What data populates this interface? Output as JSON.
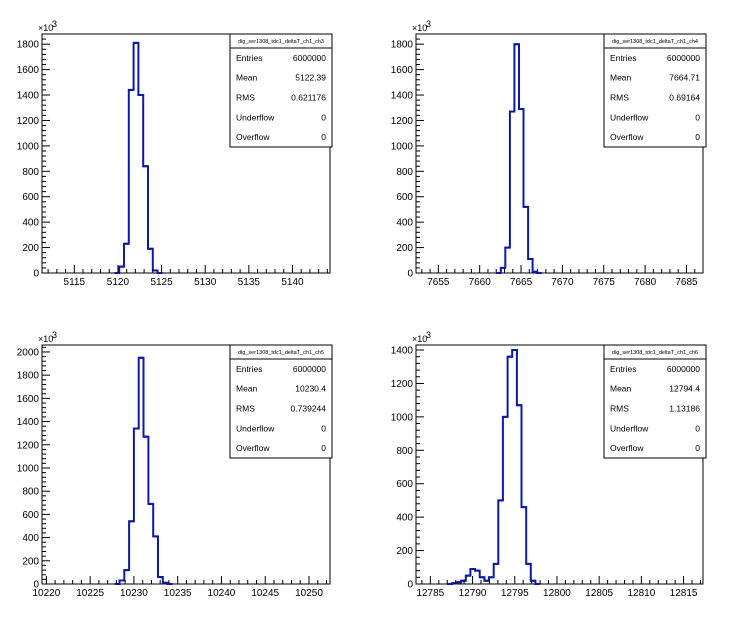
{
  "chart_data": [
    {
      "type": "histogram",
      "title": "dig_ser1308_tdc1_deltaT_ch1_ch3",
      "exponent_label": "×10",
      "exponent_power": "3",
      "xlim": [
        5111.3,
        5144.3
      ],
      "ylim": [
        0,
        1880
      ],
      "xticks": [
        5115,
        5120,
        5125,
        5130,
        5135,
        5140
      ],
      "yticks": [
        0,
        200,
        400,
        600,
        800,
        1000,
        1200,
        1400,
        1600,
        1800
      ],
      "bin_width": 0.55,
      "bins": [
        {
          "x": 5119.6,
          "y": 0
        },
        {
          "x": 5120.15,
          "y": 50
        },
        {
          "x": 5120.7,
          "y": 230
        },
        {
          "x": 5121.25,
          "y": 1440
        },
        {
          "x": 5121.8,
          "y": 1810
        },
        {
          "x": 5122.35,
          "y": 1400
        },
        {
          "x": 5122.9,
          "y": 840
        },
        {
          "x": 5123.45,
          "y": 190
        },
        {
          "x": 5124.0,
          "y": 20
        },
        {
          "x": 5124.55,
          "y": 0
        }
      ],
      "stats": [
        {
          "label": "Entries",
          "value": "6000000"
        },
        {
          "label": "Mean",
          "value": "5122.39"
        },
        {
          "label": "RMS",
          "value": "0.621176"
        },
        {
          "label": "Underflow",
          "value": "0"
        },
        {
          "label": "Overflow",
          "value": "0"
        }
      ]
    },
    {
      "type": "histogram",
      "title": "dig_ser1308_tdc1_deltaT_ch1_ch4",
      "exponent_label": "×10",
      "exponent_power": "3",
      "xlim": [
        7652.3,
        7687.0
      ],
      "ylim": [
        0,
        1880
      ],
      "xticks": [
        7655,
        7660,
        7665,
        7670,
        7675,
        7680,
        7685
      ],
      "yticks": [
        0,
        200,
        400,
        600,
        800,
        1000,
        1200,
        1400,
        1600,
        1800
      ],
      "bin_width": 0.55,
      "bins": [
        {
          "x": 7662.0,
          "y": 0
        },
        {
          "x": 7662.55,
          "y": 40
        },
        {
          "x": 7663.1,
          "y": 200
        },
        {
          "x": 7663.65,
          "y": 1270
        },
        {
          "x": 7664.2,
          "y": 1800
        },
        {
          "x": 7664.75,
          "y": 1290
        },
        {
          "x": 7665.3,
          "y": 520
        },
        {
          "x": 7665.85,
          "y": 110
        },
        {
          "x": 7666.4,
          "y": 10
        },
        {
          "x": 7666.95,
          "y": 0
        }
      ],
      "stats": [
        {
          "label": "Entries",
          "value": "6000000"
        },
        {
          "label": "Mean",
          "value": "7664.71"
        },
        {
          "label": "RMS",
          "value": "0.69164"
        },
        {
          "label": "Underflow",
          "value": "0"
        },
        {
          "label": "Overflow",
          "value": "0"
        }
      ]
    },
    {
      "type": "histogram",
      "title": "dig_ser1308_tdc1_deltaT_ch1_ch5",
      "exponent_label": "×10",
      "exponent_power": "3",
      "xlim": [
        10219.5,
        10252.4
      ],
      "ylim": [
        0,
        2060
      ],
      "xticks": [
        10220,
        10225,
        10230,
        10235,
        10240,
        10245,
        10250
      ],
      "yticks": [
        0,
        200,
        400,
        600,
        800,
        1000,
        1200,
        1400,
        1600,
        1800,
        2000
      ],
      "bin_width": 0.55,
      "bins": [
        {
          "x": 10227.8,
          "y": 0
        },
        {
          "x": 10228.35,
          "y": 30
        },
        {
          "x": 10228.9,
          "y": 120
        },
        {
          "x": 10229.45,
          "y": 540
        },
        {
          "x": 10230.0,
          "y": 1340
        },
        {
          "x": 10230.55,
          "y": 1950
        },
        {
          "x": 10231.1,
          "y": 1270
        },
        {
          "x": 10231.65,
          "y": 690
        },
        {
          "x": 10232.2,
          "y": 410
        },
        {
          "x": 10232.75,
          "y": 60
        },
        {
          "x": 10233.3,
          "y": 10
        },
        {
          "x": 10233.85,
          "y": 0
        }
      ],
      "stats": [
        {
          "label": "Entries",
          "value": "6000000"
        },
        {
          "label": "Mean",
          "value": "10230.4"
        },
        {
          "label": "RMS",
          "value": "0.739244"
        },
        {
          "label": "Underflow",
          "value": "0"
        },
        {
          "label": "Overflow",
          "value": "0"
        }
      ]
    },
    {
      "type": "histogram",
      "title": "dig_ser1308_tdc1_deltaT_ch1_ch6",
      "exponent_label": "×10",
      "exponent_power": "3",
      "xlim": [
        12783.3,
        12817.3
      ],
      "ylim": [
        0,
        1430
      ],
      "xticks": [
        12785,
        12790,
        12795,
        12800,
        12805,
        12810,
        12815
      ],
      "yticks": [
        0,
        200,
        400,
        600,
        800,
        1000,
        1200,
        1400
      ],
      "bin_width": 0.55,
      "bins": [
        {
          "x": 12787.0,
          "y": 0
        },
        {
          "x": 12787.55,
          "y": 5
        },
        {
          "x": 12788.1,
          "y": 10
        },
        {
          "x": 12788.65,
          "y": 20
        },
        {
          "x": 12789.2,
          "y": 50
        },
        {
          "x": 12789.75,
          "y": 90
        },
        {
          "x": 12790.3,
          "y": 80
        },
        {
          "x": 12790.85,
          "y": 40
        },
        {
          "x": 12791.4,
          "y": 20
        },
        {
          "x": 12791.95,
          "y": 40
        },
        {
          "x": 12792.5,
          "y": 120
        },
        {
          "x": 12793.05,
          "y": 500
        },
        {
          "x": 12793.6,
          "y": 1000
        },
        {
          "x": 12794.15,
          "y": 1360
        },
        {
          "x": 12794.7,
          "y": 1400
        },
        {
          "x": 12795.25,
          "y": 1070
        },
        {
          "x": 12795.8,
          "y": 460
        },
        {
          "x": 12796.35,
          "y": 120
        },
        {
          "x": 12796.9,
          "y": 20
        },
        {
          "x": 12797.45,
          "y": 0
        }
      ],
      "stats": [
        {
          "label": "Entries",
          "value": "6000000"
        },
        {
          "label": "Mean",
          "value": "12794.4"
        },
        {
          "label": "RMS",
          "value": "1.13186"
        },
        {
          "label": "Underflow",
          "value": "0"
        },
        {
          "label": "Overflow",
          "value": "0"
        }
      ]
    }
  ]
}
